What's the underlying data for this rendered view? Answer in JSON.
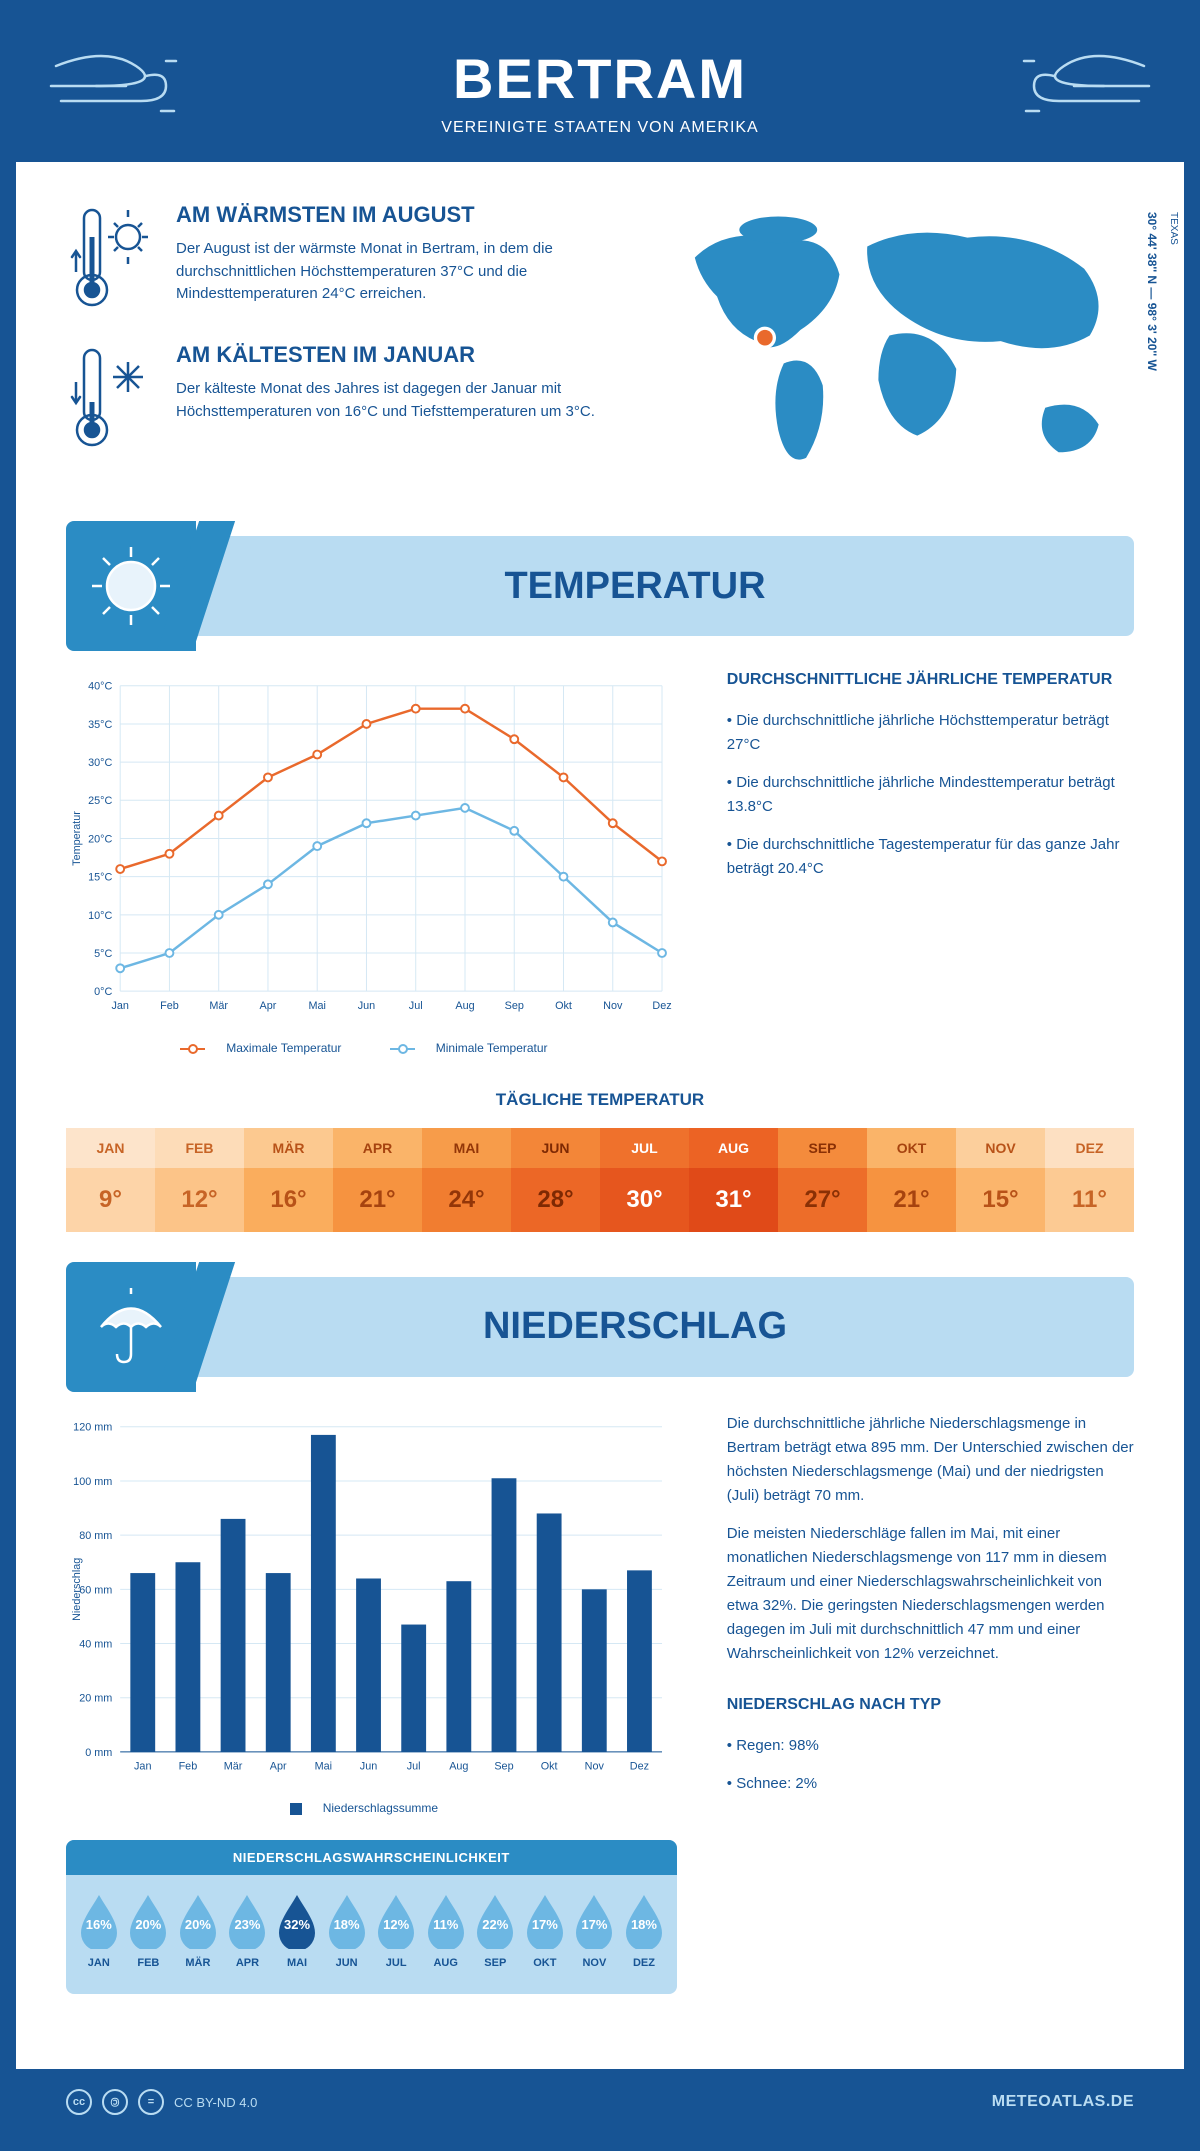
{
  "header": {
    "city": "BERTRAM",
    "country": "VEREINIGTE STAATEN VON AMERIKA"
  },
  "intro": {
    "hot": {
      "title": "AM WÄRMSTEN IM AUGUST",
      "body": "Der August ist der wärmste Monat in Bertram, in dem die durchschnittlichen Höchsttemperaturen 37°C und die Mindesttemperaturen 24°C erreichen."
    },
    "cold": {
      "title": "AM KÄLTESTEN IM JANUAR",
      "body": "Der kälteste Monat des Jahres ist dagegen der Januar mit Höchsttemperaturen von 16°C und Tiefsttemperaturen um 3°C."
    },
    "coords": "30° 44' 38'' N — 98° 3' 20'' W",
    "region": "TEXAS"
  },
  "colors": {
    "darkBlue": "#175494",
    "lightBlue": "#b9dcf2",
    "medBlue": "#2b8cc4",
    "skyBlue": "#6db7e3",
    "orange": "#e9692c",
    "gridline": "#d5e8f4"
  },
  "tempSection": {
    "banner": "TEMPERATUR",
    "chart": {
      "type": "line",
      "months": [
        "Jan",
        "Feb",
        "Mär",
        "Apr",
        "Mai",
        "Jun",
        "Jul",
        "Aug",
        "Sep",
        "Okt",
        "Nov",
        "Dez"
      ],
      "max": [
        16,
        18,
        23,
        28,
        31,
        35,
        37,
        37,
        33,
        28,
        22,
        17
      ],
      "min": [
        3,
        5,
        10,
        14,
        19,
        22,
        23,
        24,
        21,
        15,
        9,
        5
      ],
      "ylim": [
        0,
        40
      ],
      "ytick_step": 5,
      "yunit": "°C",
      "ylabel": "Temperatur",
      "maxColor": "#e9692c",
      "minColor": "#6db7e3",
      "legendMax": "Maximale Temperatur",
      "legendMin": "Minimale Temperatur"
    },
    "annualTitle": "DURCHSCHNITTLICHE JÄHRLICHE TEMPERATUR",
    "bullets": [
      "Die durchschnittliche jährliche Höchsttemperatur beträgt 27°C",
      "Die durchschnittliche jährliche Mindesttemperatur beträgt 13.8°C",
      "Die durchschnittliche Tagestemperatur für das ganze Jahr beträgt 20.4°C"
    ],
    "dailyTitle": "TÄGLICHE TEMPERATUR",
    "daily": [
      {
        "m": "JAN",
        "v": "9°",
        "hbg": "#fde4cb",
        "vbg": "#fdd4a8",
        "tc": "#c76426"
      },
      {
        "m": "FEB",
        "v": "12°",
        "hbg": "#fddcb8",
        "vbg": "#fcc488",
        "tc": "#c76426"
      },
      {
        "m": "MÄR",
        "v": "16°",
        "hbg": "#fcc990",
        "vbg": "#faad5d",
        "tc": "#b85218"
      },
      {
        "m": "APR",
        "v": "21°",
        "hbg": "#fab469",
        "vbg": "#f69340",
        "tc": "#a6430f"
      },
      {
        "m": "MAI",
        "v": "24°",
        "hbg": "#f79c4a",
        "vbg": "#f17d30",
        "tc": "#933608"
      },
      {
        "m": "JUN",
        "v": "28°",
        "hbg": "#f38638",
        "vbg": "#ec6726",
        "tc": "#7e2903"
      },
      {
        "m": "JUL",
        "v": "30°",
        "hbg": "#ef712c",
        "vbg": "#e6561e",
        "tc": "#ffffff"
      },
      {
        "m": "AUG",
        "v": "31°",
        "hbg": "#ec6324",
        "vbg": "#e04a18",
        "tc": "#ffffff"
      },
      {
        "m": "SEP",
        "v": "27°",
        "hbg": "#f48b3c",
        "vbg": "#ed6d29",
        "tc": "#8a3005"
      },
      {
        "m": "OKT",
        "v": "21°",
        "hbg": "#fab469",
        "vbg": "#f69340",
        "tc": "#a6430f"
      },
      {
        "m": "NOV",
        "v": "15°",
        "hbg": "#fccf9c",
        "vbg": "#fbb56c",
        "tc": "#b85218"
      },
      {
        "m": "DEZ",
        "v": "11°",
        "hbg": "#fde0c2",
        "vbg": "#fcca93",
        "tc": "#c76426"
      }
    ]
  },
  "precipSection": {
    "banner": "NIEDERSCHLAG",
    "chart": {
      "type": "bar",
      "months": [
        "Jan",
        "Feb",
        "Mär",
        "Apr",
        "Mai",
        "Jun",
        "Jul",
        "Aug",
        "Sep",
        "Okt",
        "Nov",
        "Dez"
      ],
      "values": [
        66,
        70,
        86,
        66,
        117,
        64,
        47,
        63,
        101,
        88,
        60,
        67
      ],
      "ylim": [
        0,
        120
      ],
      "ytick_step": 20,
      "yunit": " mm",
      "ylabel": "Niederschlag",
      "barColor": "#175494",
      "legend": "Niederschlagssumme"
    },
    "paras": [
      "Die durchschnittliche jährliche Niederschlagsmenge in Bertram beträgt etwa 895 mm. Der Unterschied zwischen der höchsten Niederschlagsmenge (Mai) und der niedrigsten (Juli) beträgt 70 mm.",
      "Die meisten Niederschläge fallen im Mai, mit einer monatlichen Niederschlagsmenge von 117 mm in diesem Zeitraum und einer Niederschlagswahrscheinlichkeit von etwa 32%. Die geringsten Niederschlagsmengen werden dagegen im Juli mit durchschnittlich 47 mm und einer Wahrscheinlichkeit von 12% verzeichnet."
    ],
    "typeTitle": "NIEDERSCHLAG NACH TYP",
    "typeBullets": [
      "Regen: 98%",
      "Schnee: 2%"
    ],
    "probTitle": "NIEDERSCHLAGSWAHRSCHEINLICHKEIT",
    "prob": [
      {
        "m": "JAN",
        "v": "16%",
        "hl": false
      },
      {
        "m": "FEB",
        "v": "20%",
        "hl": false
      },
      {
        "m": "MÄR",
        "v": "20%",
        "hl": false
      },
      {
        "m": "APR",
        "v": "23%",
        "hl": false
      },
      {
        "m": "MAI",
        "v": "32%",
        "hl": true
      },
      {
        "m": "JUN",
        "v": "18%",
        "hl": false
      },
      {
        "m": "JUL",
        "v": "12%",
        "hl": false
      },
      {
        "m": "AUG",
        "v": "11%",
        "hl": false
      },
      {
        "m": "SEP",
        "v": "22%",
        "hl": false
      },
      {
        "m": "OKT",
        "v": "17%",
        "hl": false
      },
      {
        "m": "NOV",
        "v": "17%",
        "hl": false
      },
      {
        "m": "DEZ",
        "v": "18%",
        "hl": false
      }
    ]
  },
  "footer": {
    "license": "CC BY-ND 4.0",
    "site": "METEOATLAS.DE"
  }
}
